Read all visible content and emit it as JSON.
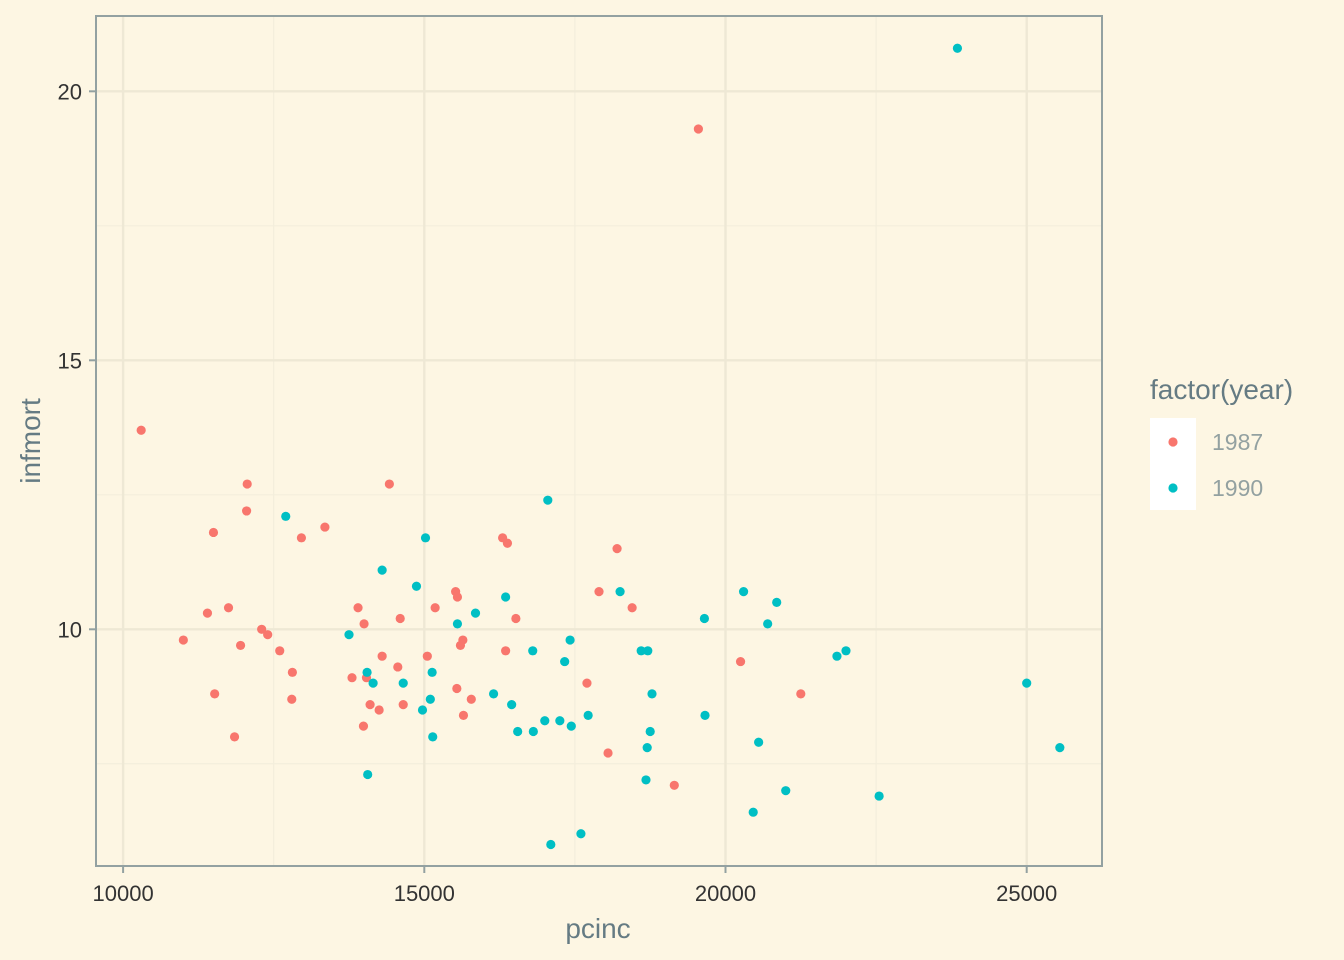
{
  "colors": {
    "background": "#fdf6e3",
    "grid_major": "#eee8d5",
    "grid_minor": "#f3eedc",
    "panel_border": "#93a1a1",
    "legend_key_bg": "#ffffff"
  },
  "chart_data": {
    "type": "scatter",
    "title": "",
    "xlabel": "pcinc",
    "ylabel": "infmort",
    "xlim": [
      9550,
      26250
    ],
    "ylim": [
      5.6,
      21.4
    ],
    "x_ticks": [
      10000,
      15000,
      20000,
      25000
    ],
    "x_tick_labels": [
      "10000",
      "15000",
      "20000",
      "25000"
    ],
    "y_ticks": [
      10,
      15,
      20
    ],
    "y_tick_labels": [
      "10",
      "15",
      "20"
    ],
    "x_minor_ticks": [
      12500,
      17500,
      22500
    ],
    "y_minor_ticks": [
      7.5,
      12.5,
      17.5
    ],
    "grid": true,
    "legend": {
      "title": "factor(year)",
      "position": "right"
    },
    "series": [
      {
        "name": "1987",
        "color": "#f8766d",
        "points": [
          [
            10300,
            13.7
          ],
          [
            11000,
            9.8
          ],
          [
            11400,
            10.3
          ],
          [
            11500,
            11.8
          ],
          [
            11520,
            8.8
          ],
          [
            11750,
            10.4
          ],
          [
            11850,
            8.0
          ],
          [
            11950,
            9.7
          ],
          [
            12050,
            12.2
          ],
          [
            12060,
            12.7
          ],
          [
            12300,
            10.0
          ],
          [
            12400,
            9.9
          ],
          [
            12600,
            9.6
          ],
          [
            12800,
            8.7
          ],
          [
            12810,
            9.2
          ],
          [
            12960,
            11.7
          ],
          [
            13350,
            11.9
          ],
          [
            13800,
            9.1
          ],
          [
            13900,
            10.4
          ],
          [
            13990,
            8.2
          ],
          [
            14000,
            10.1
          ],
          [
            14040,
            9.1
          ],
          [
            14100,
            8.6
          ],
          [
            14250,
            8.5
          ],
          [
            14300,
            9.5
          ],
          [
            14420,
            12.7
          ],
          [
            14560,
            9.3
          ],
          [
            14600,
            10.2
          ],
          [
            14650,
            8.6
          ],
          [
            15050,
            9.5
          ],
          [
            15180,
            10.4
          ],
          [
            15520,
            10.7
          ],
          [
            15550,
            10.6
          ],
          [
            15600,
            9.7
          ],
          [
            15640,
            9.8
          ],
          [
            15650,
            8.4
          ],
          [
            15780,
            8.7
          ],
          [
            15540,
            8.9
          ],
          [
            16300,
            11.7
          ],
          [
            16350,
            9.6
          ],
          [
            16380,
            11.6
          ],
          [
            16520,
            10.2
          ],
          [
            17700,
            9.0
          ],
          [
            17900,
            10.7
          ],
          [
            18050,
            7.7
          ],
          [
            18200,
            11.5
          ],
          [
            18450,
            10.4
          ],
          [
            19150,
            7.1
          ],
          [
            19550,
            19.3
          ],
          [
            20250,
            9.4
          ],
          [
            21250,
            8.8
          ]
        ]
      },
      {
        "name": "1990",
        "color": "#00bfc4",
        "points": [
          [
            12700,
            12.1
          ],
          [
            13750,
            9.9
          ],
          [
            14050,
            9.2
          ],
          [
            14060,
            7.3
          ],
          [
            14150,
            9.0
          ],
          [
            14300,
            11.1
          ],
          [
            14650,
            9.0
          ],
          [
            14870,
            10.8
          ],
          [
            14970,
            8.5
          ],
          [
            15020,
            11.7
          ],
          [
            15100,
            8.7
          ],
          [
            15130,
            9.2
          ],
          [
            15140,
            8.0
          ],
          [
            15550,
            10.1
          ],
          [
            15850,
            10.3
          ],
          [
            16150,
            8.8
          ],
          [
            16350,
            10.6
          ],
          [
            16450,
            8.6
          ],
          [
            16550,
            8.1
          ],
          [
            16800,
            9.6
          ],
          [
            16810,
            8.1
          ],
          [
            17000,
            8.3
          ],
          [
            17050,
            12.4
          ],
          [
            17100,
            6.0
          ],
          [
            17250,
            8.3
          ],
          [
            17330,
            9.4
          ],
          [
            17420,
            9.8
          ],
          [
            17440,
            8.2
          ],
          [
            17600,
            6.2
          ],
          [
            17720,
            8.4
          ],
          [
            18250,
            10.7
          ],
          [
            18600,
            9.6
          ],
          [
            18680,
            7.2
          ],
          [
            18700,
            7.8
          ],
          [
            18710,
            9.6
          ],
          [
            18750,
            8.1
          ],
          [
            18780,
            8.8
          ],
          [
            19650,
            10.2
          ],
          [
            19660,
            8.4
          ],
          [
            20300,
            10.7
          ],
          [
            20460,
            6.6
          ],
          [
            20550,
            7.9
          ],
          [
            20700,
            10.1
          ],
          [
            20850,
            10.5
          ],
          [
            21000,
            7.0
          ],
          [
            21850,
            9.5
          ],
          [
            22000,
            9.6
          ],
          [
            22550,
            6.9
          ],
          [
            23850,
            20.8
          ],
          [
            25000,
            9.0
          ],
          [
            25550,
            7.8
          ]
        ]
      }
    ]
  }
}
